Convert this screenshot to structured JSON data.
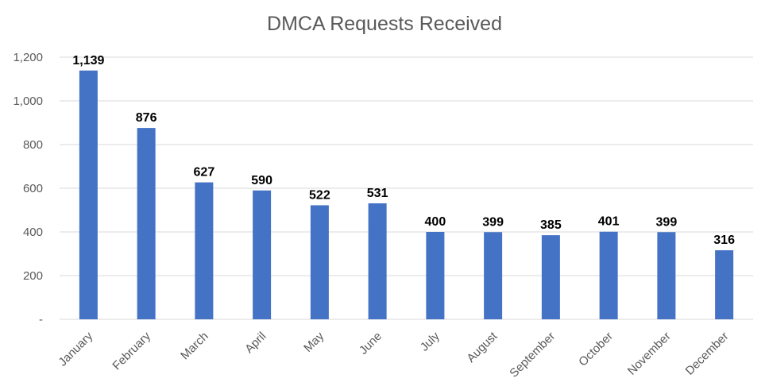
{
  "chart_data": {
    "type": "bar",
    "title": "DMCA Requests Received",
    "xlabel": "",
    "ylabel": "",
    "categories": [
      "January",
      "February",
      "March",
      "April",
      "May",
      "June",
      "July",
      "August",
      "September",
      "October",
      "November",
      "December"
    ],
    "values": [
      1139,
      876,
      627,
      590,
      522,
      531,
      400,
      399,
      385,
      401,
      399,
      316
    ],
    "data_labels": [
      "1,139",
      "876",
      "627",
      "590",
      "522",
      "531",
      "400",
      "399",
      "385",
      "401",
      "399",
      "316"
    ],
    "ylim": [
      0,
      1200
    ],
    "yticks": [
      0,
      200,
      400,
      600,
      800,
      1000,
      1200
    ],
    "ytick_labels": [
      "-",
      "200",
      "400",
      "600",
      "800",
      "1,000",
      "1,200"
    ],
    "grid": true,
    "legend": "none",
    "colors": {
      "bar": "#4472c4",
      "grid": "#d9d9d9",
      "axis_text": "#595959",
      "title": "#595959",
      "data_label": "#000000"
    }
  }
}
